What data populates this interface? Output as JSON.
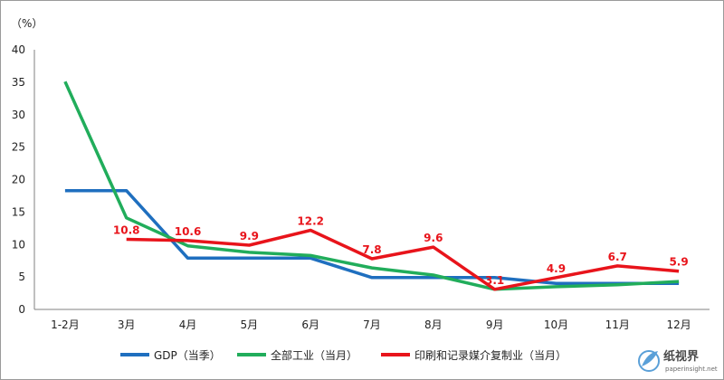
{
  "chart_data": {
    "type": "line",
    "unit_label": "（%）",
    "categories": [
      "1-2月",
      "3月",
      "4月",
      "5月",
      "6月",
      "7月",
      "8月",
      "9月",
      "10月",
      "11月",
      "12月"
    ],
    "ylim": [
      0,
      40
    ],
    "yticks": [
      0,
      5,
      10,
      15,
      20,
      25,
      30,
      35,
      40
    ],
    "grid": false,
    "legend_position": "bottom",
    "series": [
      {
        "name": "GDP（当季）",
        "color": "#1f6fbf",
        "values": [
          18.3,
          18.3,
          7.9,
          7.9,
          7.9,
          4.9,
          4.9,
          4.9,
          4.0,
          4.0,
          4.0
        ]
      },
      {
        "name": "全部工业（当月）",
        "color": "#21ad5b",
        "values": [
          35.1,
          14.1,
          9.8,
          8.8,
          8.3,
          6.4,
          5.3,
          3.1,
          3.5,
          3.8,
          4.3
        ]
      },
      {
        "name": "印刷和记录媒介复制业（当月）",
        "color": "#e8141b",
        "values": [
          null,
          10.8,
          10.6,
          9.9,
          12.2,
          7.8,
          9.6,
          3.1,
          4.9,
          6.7,
          5.9
        ],
        "data_labels": [
          null,
          "10.8",
          "10.6",
          "9.9",
          "12.2",
          "7.8",
          "9.6",
          "3.1",
          "4.9",
          "6.7",
          "5.9"
        ]
      }
    ]
  },
  "watermark": {
    "text": "纸视界",
    "url": "paperinsight.net",
    "logo_color": "#5aa0d8"
  }
}
